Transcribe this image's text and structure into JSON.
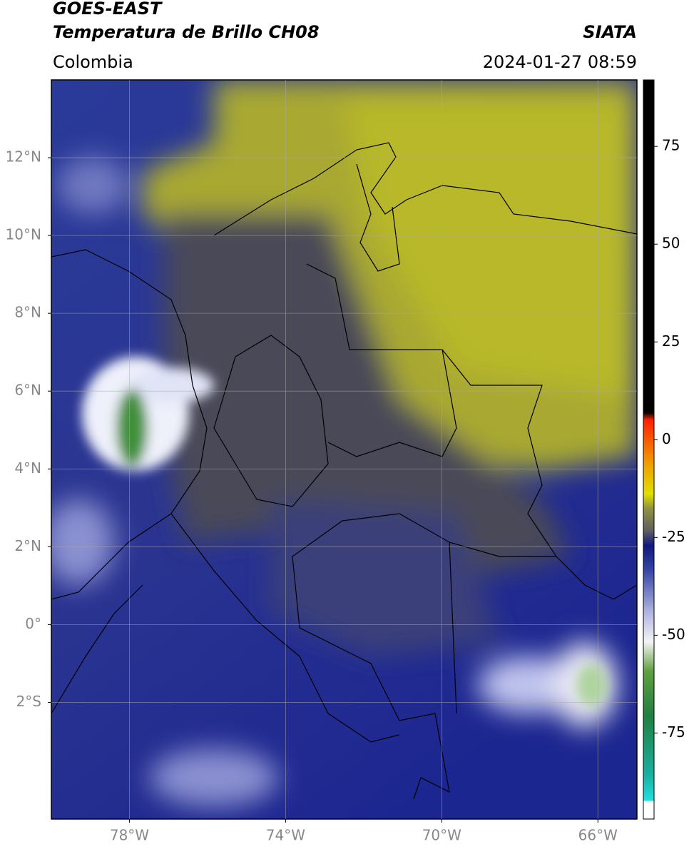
{
  "header": {
    "title": "GOES-EAST",
    "subtitle": "Temperatura de Brillo CH08",
    "agency": "SIATA",
    "region": "Colombia",
    "timestamp": "2024-01-27 08:59"
  },
  "map": {
    "xlim": [
      -80,
      -65
    ],
    "ylim": [
      -5,
      14
    ],
    "xticks": [
      {
        "value": -78,
        "label": "78°W"
      },
      {
        "value": -74,
        "label": "74°W"
      },
      {
        "value": -70,
        "label": "70°W"
      },
      {
        "value": -66,
        "label": "66°W"
      }
    ],
    "yticks": [
      {
        "value": 12,
        "label": "12°N"
      },
      {
        "value": 10,
        "label": "10°N"
      },
      {
        "value": 8,
        "label": "8°N"
      },
      {
        "value": 6,
        "label": "6°N"
      },
      {
        "value": 4,
        "label": "4°N"
      },
      {
        "value": 2,
        "label": "2°N"
      },
      {
        "value": 0,
        "label": "0°"
      },
      {
        "value": -2,
        "label": "2°S"
      }
    ]
  },
  "colorbar": {
    "lim": [
      -97,
      92
    ],
    "ticks": [
      75,
      50,
      25,
      0,
      -25,
      -50,
      -75
    ]
  }
}
